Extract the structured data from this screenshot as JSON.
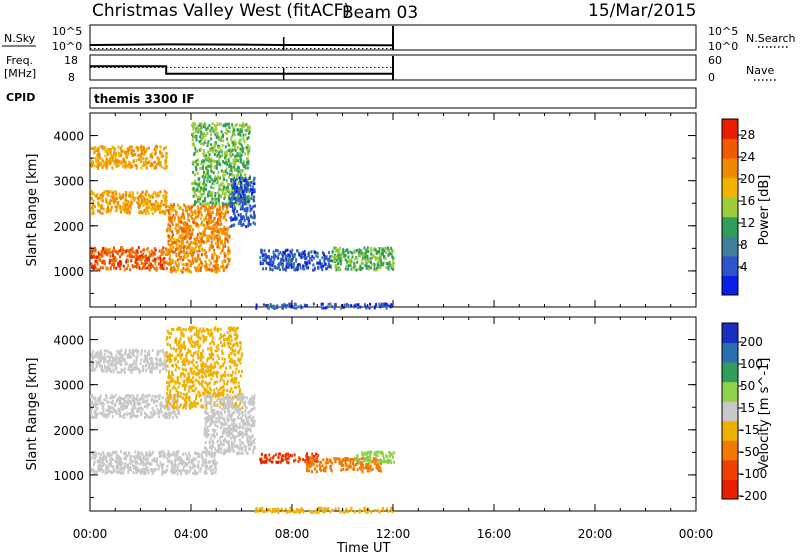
{
  "header": {
    "title": "Christmas Valley West (fitACF)",
    "beam": "Beam 03",
    "date": "15/Mar/2015"
  },
  "strips": {
    "nsky_label": "N.Sky",
    "nsky_ticks": [
      "10^5",
      "10^0"
    ],
    "nsearch_label": "N.Search",
    "freq_label": "Freq.",
    "freq_unit": "[MHz]",
    "freq_ticks": [
      "18",
      "8"
    ],
    "nave_label": "Nave",
    "nave_ticks": [
      "60",
      "0"
    ],
    "cpid_label": "CPID",
    "cpid_value": "themis 3300 IF"
  },
  "colors": {
    "power_scale": [
      "#0a1ee6",
      "#2b55c8",
      "#3f7f9a",
      "#2e9e5a",
      "#9ccc3a",
      "#f0b400",
      "#f08a00",
      "#f05a00",
      "#e81e00"
    ],
    "velocity_scale": [
      "#e81e00",
      "#f04000",
      "#f07a00",
      "#f0b000",
      "#c8c8c8",
      "#8fd14a",
      "#2e9e5a",
      "#2a6fb0",
      "#1a2fc0"
    ],
    "ground_scatter": "#c8c8c8"
  },
  "chart_data": [
    {
      "type": "line",
      "title": "",
      "panel": "N.Sky / N.Search",
      "ylabel": "N.Sky",
      "y_scale": "log",
      "ylim": [
        1,
        100000
      ],
      "y_ticks": [
        "10^5",
        "10^0"
      ],
      "x": [
        "00:00",
        "03:00",
        "06:00",
        "07:40",
        "09:00",
        "12:00"
      ],
      "series": [
        {
          "name": "N.Sky",
          "values": [
            10,
            13,
            12,
            10,
            10,
            9
          ]
        },
        {
          "name": "N.Search",
          "values": [
            2,
            2,
            2,
            2,
            2,
            2
          ]
        }
      ]
    },
    {
      "type": "line",
      "title": "",
      "panel": "Freq. / Nave",
      "ylabel": "Freq. [MHz]",
      "ylim": [
        8,
        18
      ],
      "y_ticks": [
        "18",
        "8"
      ],
      "right_ylabel": "Nave",
      "right_ylim": [
        0,
        60
      ],
      "right_ticks": [
        "60",
        "0"
      ],
      "x": [
        "00:00",
        "03:00",
        "03:01",
        "06:00",
        "12:00"
      ],
      "series": [
        {
          "name": "Freq.",
          "values": [
            13.5,
            13.5,
            10.5,
            10.5,
            10.3
          ]
        },
        {
          "name": "Nave",
          "values": [
            30,
            30,
            30,
            30,
            30
          ]
        }
      ]
    },
    {
      "type": "heatmap",
      "title": "",
      "panel": "Power",
      "xlabel": "Time UT",
      "ylabel": "Slant Range [km]",
      "x_ticks": [
        "00:00",
        "04:00",
        "08:00",
        "12:00",
        "16:00",
        "20:00",
        "00:00"
      ],
      "y_ticks": [
        "1000",
        "2000",
        "3000",
        "4000"
      ],
      "xlim_hours": [
        0,
        24
      ],
      "ylim": [
        200,
        4500
      ],
      "colorbar_label": "Power [dB]",
      "colorbar_ticks": [
        "28",
        "24",
        "20",
        "16",
        "12",
        "8",
        "4"
      ],
      "regions": [
        {
          "t0": 0.0,
          "t1": 3.0,
          "r0": 1050,
          "r1": 1550,
          "value": 30
        },
        {
          "t0": 0.0,
          "t1": 3.0,
          "r0": 2300,
          "r1": 2800,
          "value": 24
        },
        {
          "t0": 0.0,
          "t1": 3.0,
          "r0": 3300,
          "r1": 3800,
          "value": 24
        },
        {
          "t0": 3.0,
          "t1": 5.5,
          "r0": 1000,
          "r1": 2500,
          "value": 26
        },
        {
          "t0": 4.0,
          "t1": 6.3,
          "r0": 2500,
          "r1": 4300,
          "value": 16
        },
        {
          "t0": 5.5,
          "t1": 6.5,
          "r0": 2000,
          "r1": 3100,
          "value": 6
        },
        {
          "t0": 6.7,
          "t1": 9.5,
          "r0": 1050,
          "r1": 1500,
          "value": 6
        },
        {
          "t0": 9.5,
          "t1": 12.0,
          "r0": 1050,
          "r1": 1550,
          "value": 16
        },
        {
          "t0": 6.5,
          "t1": 12.0,
          "r0": 200,
          "r1": 300,
          "value": 6
        }
      ]
    },
    {
      "type": "heatmap",
      "title": "",
      "panel": "Velocity",
      "xlabel": "Time UT",
      "ylabel": "Slant Range [km]",
      "x_ticks": [
        "00:00",
        "04:00",
        "08:00",
        "12:00",
        "16:00",
        "20:00",
        "00:00"
      ],
      "y_ticks": [
        "1000",
        "2000",
        "3000",
        "4000"
      ],
      "xlim_hours": [
        0,
        24
      ],
      "ylim": [
        200,
        4500
      ],
      "colorbar_label": "Velocity [m s^-1]",
      "colorbar_ticks": [
        "200",
        "100",
        "50",
        "15",
        "-15",
        "-50",
        "-100",
        "-200"
      ],
      "regions": [
        {
          "t0": 0.0,
          "t1": 5.0,
          "r0": 1050,
          "r1": 1550,
          "value": 0
        },
        {
          "t0": 0.0,
          "t1": 3.5,
          "r0": 2300,
          "r1": 2800,
          "value": 0
        },
        {
          "t0": 0.0,
          "t1": 3.0,
          "r0": 3300,
          "r1": 3800,
          "value": 0
        },
        {
          "t0": 3.0,
          "t1": 6.0,
          "r0": 2500,
          "r1": 4300,
          "value": -40
        },
        {
          "t0": 4.5,
          "t1": 6.5,
          "r0": 1500,
          "r1": 2800,
          "value": 0
        },
        {
          "t0": 6.7,
          "t1": 9.0,
          "r0": 1300,
          "r1": 1500,
          "value": -200
        },
        {
          "t0": 8.5,
          "t1": 11.5,
          "r0": 1100,
          "r1": 1400,
          "value": -60
        },
        {
          "t0": 10.5,
          "t1": 12.0,
          "r0": 1300,
          "r1": 1550,
          "value": 30
        },
        {
          "t0": 6.5,
          "t1": 12.0,
          "r0": 200,
          "r1": 300,
          "value": -40
        }
      ]
    }
  ],
  "footer": {
    "xlabel": "Time UT"
  }
}
